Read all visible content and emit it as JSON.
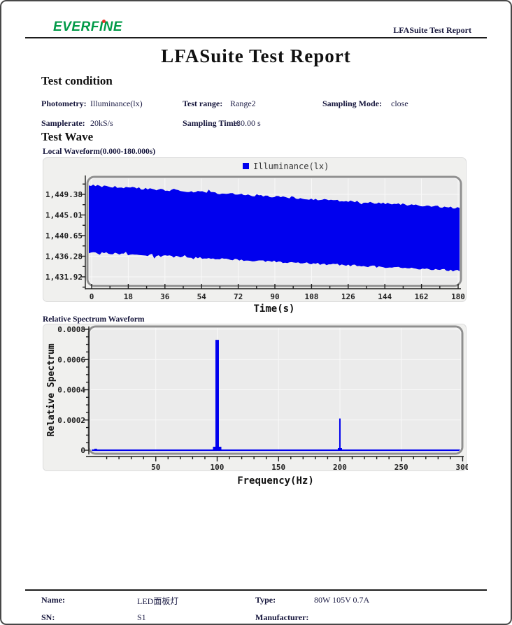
{
  "header": {
    "logo": "EVERFINE",
    "doc_label": "LFASuite Test Report"
  },
  "title": "LFASuite Test Report",
  "test_condition": {
    "heading": "Test condition",
    "rows": [
      [
        {
          "label": "Photometry:",
          "value": "Illuminance(lx)"
        },
        {
          "label": "Test range:",
          "value": "Range2"
        },
        {
          "label": "Sampling Mode:",
          "value": "close"
        }
      ],
      [
        {
          "label": "Samplerate:",
          "value": "20kS/s"
        },
        {
          "label": "Sampling Time:",
          "value": "180.00 s"
        }
      ]
    ]
  },
  "test_wave": {
    "heading": "Test Wave",
    "waveform_title": "Local Waveform(0.000-180.000s)",
    "spectrum_title": "Relative Spectrum Waveform"
  },
  "chart_data": [
    {
      "type": "area",
      "name": "local_waveform",
      "title": "Local Waveform(0.000-180.000s)",
      "legend": [
        {
          "label": "Illuminance(lx)",
          "color": "#0000ee"
        }
      ],
      "xlabel": "Time(s)",
      "xlim": [
        0,
        180
      ],
      "x_ticks": [
        0,
        18,
        36,
        54,
        72,
        90,
        108,
        126,
        144,
        162,
        180
      ],
      "y_ticks": [
        1449.38,
        1445.01,
        1440.65,
        1436.28,
        1431.92
      ],
      "y_tick_labels": [
        "1,449.38",
        "1,445.01",
        "1,440.65",
        "1,436.28",
        "1,431.92"
      ],
      "envelope": {
        "comment": "dense AC waveform forms a solid blue band; linear drift over 180 s",
        "upper_start": 1451.3,
        "upper_end": 1446.5,
        "lower_start": 1437.1,
        "lower_end": 1433.2
      },
      "grid": true,
      "legend_position": "top-center"
    },
    {
      "type": "line",
      "name": "relative_spectrum",
      "title": "Relative Spectrum Waveform",
      "xlabel": "Frequency(Hz)",
      "ylabel": "Relative Spectrum",
      "color": "#0000ee",
      "xlim": [
        0,
        300
      ],
      "ylim": [
        0,
        0.0008
      ],
      "x_ticks": [
        50,
        100,
        150,
        200,
        250,
        300
      ],
      "x_minor_step": 10,
      "y_ticks": [
        0,
        0.0002,
        0.0004,
        0.0006,
        0.0008
      ],
      "y_tick_labels": [
        "0",
        "0.0002",
        "0.0004",
        "0.0006",
        "0.0008"
      ],
      "baseline": 0,
      "peaks": [
        {
          "freq": 100,
          "value": 0.00073
        },
        {
          "freq": 200,
          "value": 0.00021
        },
        {
          "freq": 1,
          "value": 1e-05
        }
      ],
      "grid": true
    }
  ],
  "footer": {
    "rows": [
      [
        {
          "label": "Name:",
          "value": "LED面板灯"
        },
        {
          "label": "Type:",
          "value": "80W 105V 0.7A"
        }
      ],
      [
        {
          "label": "SN:",
          "value": "S1"
        },
        {
          "label": "Manufacturer:",
          "value": ""
        }
      ]
    ]
  }
}
